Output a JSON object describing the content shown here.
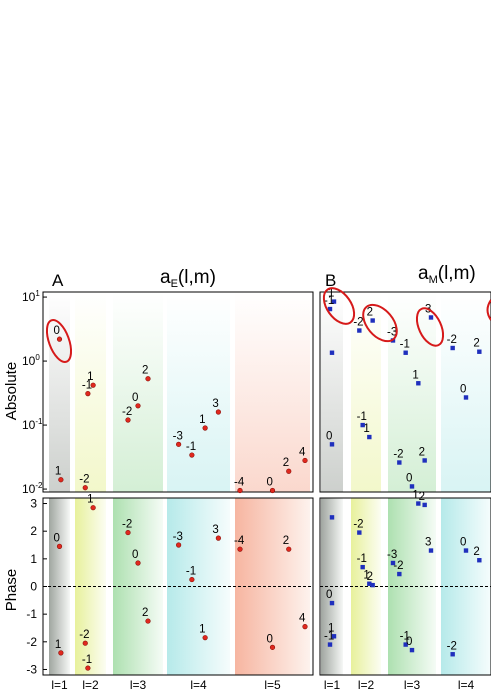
{
  "colors": {
    "electric_points": "#e0281e",
    "magnetic_points": "#1f2fbd",
    "highlight_ellipse": "#d61a1a",
    "zero_line": "#000000"
  },
  "chart_data": [
    {
      "panel_letter": "A",
      "title_main": "a",
      "title_sub": "E",
      "title_args": "(l,m)",
      "type": "scatter",
      "y_axis_labels": [
        "Absolute",
        "Phase"
      ],
      "x_tick_labels": [
        "l=1",
        "l=2",
        "l=3",
        "l=4",
        "l=5"
      ],
      "abs_ticks": [
        "10",
        "10",
        "10",
        "10"
      ],
      "abs_tick_exponents": [
        "1",
        "0",
        "-1",
        "-2"
      ],
      "phase_ticks": [
        "3",
        "2",
        "1",
        "0",
        "-1",
        "-2",
        "-3"
      ],
      "abs_scale": "log",
      "abs_ylim": [
        0.009,
        12
      ],
      "phase_ylim": [
        -3.2,
        3.2
      ],
      "grid": false,
      "legend": "none",
      "abs_points": [
        {
          "l": 1,
          "m": "0",
          "value": 2.2
        },
        {
          "l": 1,
          "m": "1",
          "value": 0.014
        },
        {
          "l": 2,
          "m": "1",
          "value": 0.42
        },
        {
          "l": 2,
          "m": "-1",
          "value": 0.31
        },
        {
          "l": 2,
          "m": "-2",
          "value": 0.0105
        },
        {
          "l": 3,
          "m": "0",
          "value": 0.2
        },
        {
          "l": 3,
          "m": "2",
          "value": 0.53
        },
        {
          "l": 3,
          "m": "-2",
          "value": 0.12
        },
        {
          "l": 4,
          "m": "1",
          "value": 0.09
        },
        {
          "l": 4,
          "m": "-1",
          "value": 0.034
        },
        {
          "l": 4,
          "m": "3",
          "value": 0.16
        },
        {
          "l": 4,
          "m": "-3",
          "value": 0.05
        },
        {
          "l": 5,
          "m": "0",
          "value": 0.0095
        },
        {
          "l": 5,
          "m": "2",
          "value": 0.019
        },
        {
          "l": 5,
          "m": "4",
          "value": 0.028
        },
        {
          "l": 5,
          "m": "-4",
          "value": 0.0095
        }
      ],
      "phase_points": [
        {
          "l": 1,
          "m": "0",
          "value": 1.45
        },
        {
          "l": 1,
          "m": "1",
          "value": -2.4
        },
        {
          "l": 2,
          "m": "1",
          "value": 2.85
        },
        {
          "l": 2,
          "m": "-2",
          "value": -2.05
        },
        {
          "l": 2,
          "m": "-1",
          "value": -2.95
        },
        {
          "l": 3,
          "m": "0",
          "value": 0.85
        },
        {
          "l": 3,
          "m": "-2",
          "value": 1.95
        },
        {
          "l": 3,
          "m": "2",
          "value": -1.25
        },
        {
          "l": 4,
          "m": "3",
          "value": 1.75
        },
        {
          "l": 4,
          "m": "-3",
          "value": 1.5
        },
        {
          "l": 4,
          "m": "-1",
          "value": 0.25
        },
        {
          "l": 4,
          "m": "1",
          "value": -1.85
        },
        {
          "l": 5,
          "m": "2",
          "value": 1.35
        },
        {
          "l": 5,
          "m": "-4",
          "value": 1.35
        },
        {
          "l": 5,
          "m": "4",
          "value": -1.45
        },
        {
          "l": 5,
          "m": "0",
          "value": -2.2
        }
      ]
    },
    {
      "panel_letter": "B",
      "title_main": "a",
      "title_sub": "M",
      "title_args": "(l,m)",
      "type": "scatter",
      "x_tick_labels": [
        "l=1",
        "l=2",
        "l=3",
        "l=4"
      ],
      "abs_scale": "log",
      "abs_ylim": [
        0.009,
        12
      ],
      "phase_ylim": [
        -3.2,
        3.2
      ],
      "grid": false,
      "legend": "none",
      "abs_points": [
        {
          "l": 1,
          "m": "1",
          "value": 8.5
        },
        {
          "l": 1,
          "m": "-1",
          "value": 6.5
        },
        {
          "l": 1,
          "m": "0",
          "value": 0.05
        },
        {
          "l": 1,
          "m": "",
          "value": 1.35
        },
        {
          "l": 2,
          "m": "2",
          "value": 4.3
        },
        {
          "l": 2,
          "m": "-2",
          "value": 3.0
        },
        {
          "l": 2,
          "m": "1",
          "value": 0.065
        },
        {
          "l": 2,
          "m": "-1",
          "value": 0.1
        },
        {
          "l": 3,
          "m": "3",
          "value": 4.8
        },
        {
          "l": 3,
          "m": "-3",
          "value": 2.1
        },
        {
          "l": 3,
          "m": "-1",
          "value": 1.35
        },
        {
          "l": 3,
          "m": "1",
          "value": 0.45
        },
        {
          "l": 3,
          "m": "2",
          "value": 0.028
        },
        {
          "l": 3,
          "m": "-2",
          "value": 0.026
        },
        {
          "l": 3,
          "m": "0",
          "value": 0.011
        },
        {
          "l": 4,
          "m": "0",
          "value": 0.27
        },
        {
          "l": 4,
          "m": "2",
          "value": 1.4
        },
        {
          "l": 4,
          "m": "-2",
          "value": 1.6
        }
      ],
      "phase_points": [
        {
          "l": 1,
          "m": "",
          "value": 2.5
        },
        {
          "l": 1,
          "m": "0",
          "value": -0.6
        },
        {
          "l": 1,
          "m": "1",
          "value": -1.8
        },
        {
          "l": 1,
          "m": "-1",
          "value": -2.1
        },
        {
          "l": 2,
          "m": "-2",
          "value": 1.95
        },
        {
          "l": 2,
          "m": "-1",
          "value": 0.7
        },
        {
          "l": 2,
          "m": "1",
          "value": 0.1
        },
        {
          "l": 2,
          "m": "2",
          "value": 0.05
        },
        {
          "l": 3,
          "m": "1",
          "value": 3.0
        },
        {
          "l": 3,
          "m": "2",
          "value": 2.95
        },
        {
          "l": 3,
          "m": "3",
          "value": 1.3
        },
        {
          "l": 3,
          "m": "-3",
          "value": 0.85
        },
        {
          "l": 3,
          "m": "-2",
          "value": 0.45
        },
        {
          "l": 3,
          "m": "-1",
          "value": -2.1
        },
        {
          "l": 3,
          "m": "0",
          "value": -2.3
        },
        {
          "l": 4,
          "m": "0",
          "value": 1.3
        },
        {
          "l": 4,
          "m": "2",
          "value": 0.95
        },
        {
          "l": 4,
          "m": "-2",
          "value": -2.45
        }
      ]
    }
  ]
}
